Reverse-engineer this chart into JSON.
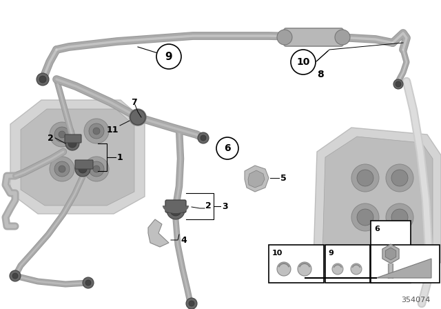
{
  "bg_color": "#ffffff",
  "part_number": "354074",
  "tube_color": "#aaaaaa",
  "tube_color_dark": "#888888",
  "engine_color_light": "#d0d0d0",
  "engine_color_mid": "#b8b8b8",
  "engine_color_dark": "#a0a0a0",
  "connector_color": "#666666",
  "connector_dark": "#444444",
  "label_color": "#000000",
  "line_color": "#000000",
  "box_outline": "#000000"
}
